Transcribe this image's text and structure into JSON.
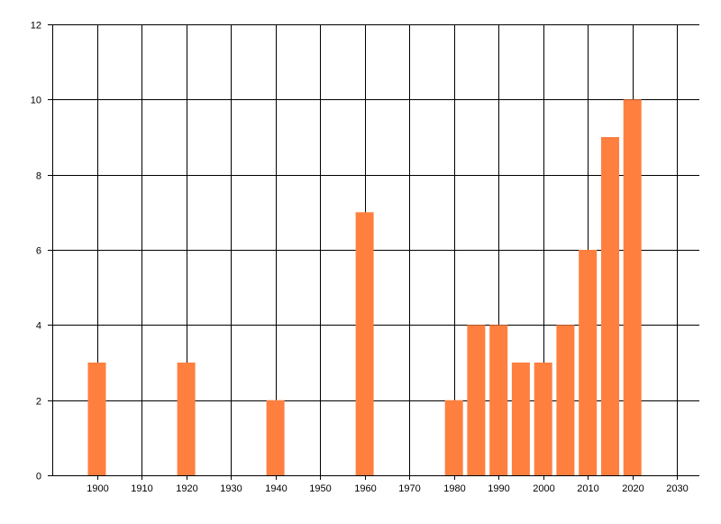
{
  "chart_data": {
    "type": "bar",
    "title": "",
    "xlabel": "",
    "ylabel": "",
    "xlim": [
      1890,
      2035
    ],
    "ylim": [
      0,
      12
    ],
    "x_ticks": [
      1900,
      1910,
      1920,
      1930,
      1940,
      1950,
      1960,
      1970,
      1980,
      1990,
      2000,
      2010,
      2020,
      2030
    ],
    "y_ticks": [
      0,
      2,
      4,
      6,
      8,
      10,
      12
    ],
    "grid": true,
    "legend": "none",
    "colors": {
      "bar": "#FF7F3F",
      "grid": "#000000",
      "background": "#FFFFFF"
    },
    "x": [
      1900,
      1920,
      1940,
      1960,
      1980,
      1985,
      1990,
      1995,
      2000,
      2005,
      2010,
      2015,
      2020
    ],
    "values": [
      3,
      3,
      2,
      7,
      2,
      4,
      4,
      3,
      3,
      4,
      6,
      9,
      10
    ]
  }
}
